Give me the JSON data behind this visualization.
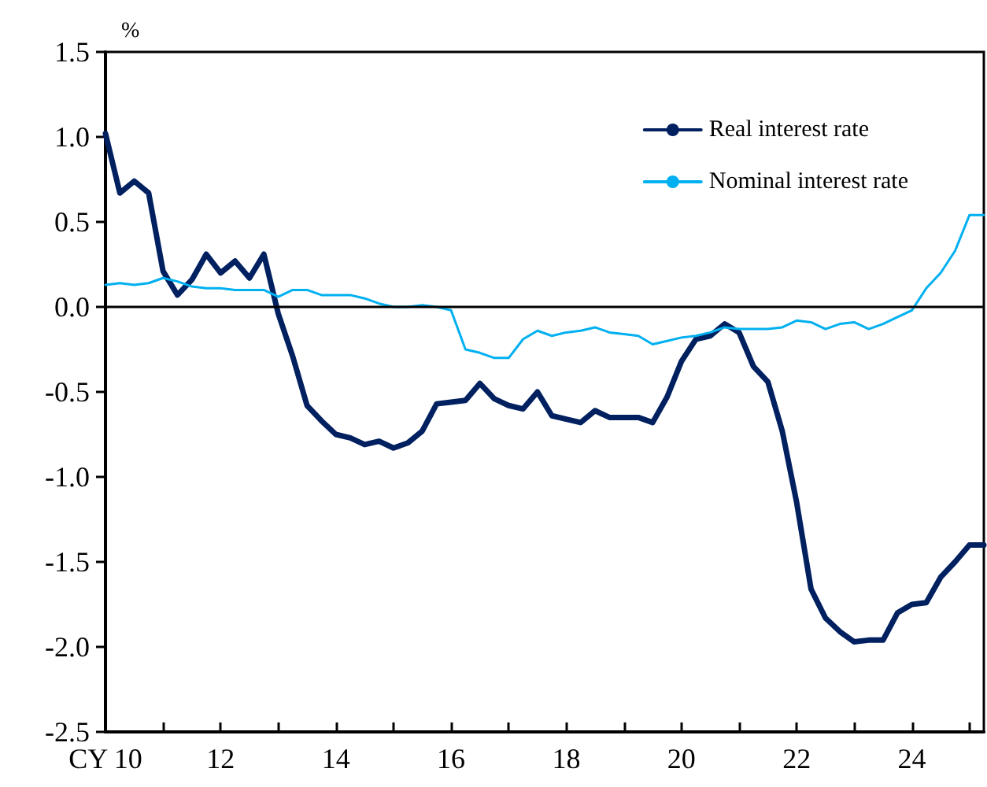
{
  "chart_data": {
    "type": "line",
    "ylabel": "%",
    "x": [
      10,
      10.25,
      10.5,
      10.75,
      11,
      11.25,
      11.5,
      11.75,
      12,
      12.25,
      12.5,
      12.75,
      13,
      13.25,
      13.5,
      13.75,
      14,
      14.25,
      14.5,
      14.75,
      15,
      15.25,
      15.5,
      15.75,
      16,
      16.25,
      16.5,
      16.75,
      17,
      17.25,
      17.5,
      17.75,
      18,
      18.25,
      18.5,
      18.75,
      19,
      19.25,
      19.5,
      19.75,
      20,
      20.25,
      20.5,
      20.75,
      21,
      21.25,
      21.5,
      21.75,
      22,
      22.25,
      22.5,
      22.75,
      23,
      23.25,
      23.5,
      23.75,
      24,
      24.25,
      24.5,
      24.75,
      25,
      25.25
    ],
    "series": [
      {
        "name": "Real interest rate",
        "color": "#002060",
        "values": [
          1.02,
          0.67,
          0.74,
          0.67,
          0.21,
          0.07,
          0.16,
          0.31,
          0.2,
          0.27,
          0.17,
          0.31,
          -0.04,
          -0.29,
          -0.58,
          -0.67,
          -0.75,
          -0.77,
          -0.81,
          -0.79,
          -0.83,
          -0.8,
          -0.73,
          -0.57,
          -0.56,
          -0.55,
          -0.45,
          -0.54,
          -0.58,
          -0.6,
          -0.5,
          -0.64,
          -0.66,
          -0.68,
          -0.61,
          -0.65,
          -0.65,
          -0.65,
          -0.68,
          -0.53,
          -0.32,
          -0.19,
          -0.17,
          -0.1,
          -0.15,
          -0.35,
          -0.44,
          -0.73,
          -1.15,
          -1.66,
          -1.83,
          -1.91,
          -1.97,
          -1.96,
          -1.96,
          -1.8,
          -1.75,
          -1.74,
          -1.59,
          -1.5,
          -1.4,
          -1.4
        ]
      },
      {
        "name": "Nominal interest rate",
        "color": "#00b0f0",
        "values": [
          0.13,
          0.14,
          0.13,
          0.14,
          0.17,
          0.15,
          0.12,
          0.11,
          0.11,
          0.1,
          0.1,
          0.1,
          0.06,
          0.1,
          0.1,
          0.07,
          0.07,
          0.07,
          0.05,
          0.02,
          0,
          0,
          0.01,
          0,
          -0.02,
          -0.25,
          -0.27,
          -0.3,
          -0.3,
          -0.19,
          -0.14,
          -0.17,
          -0.15,
          -0.14,
          -0.12,
          -0.15,
          -0.16,
          -0.17,
          -0.22,
          -0.2,
          -0.18,
          -0.17,
          -0.15,
          -0.12,
          -0.13,
          -0.13,
          -0.13,
          -0.12,
          -0.08,
          -0.09,
          -0.13,
          -0.1,
          -0.09,
          -0.13,
          -0.1,
          -0.06,
          -0.02,
          0.11,
          0.2,
          0.33,
          0.54,
          0.54
        ]
      }
    ],
    "xlim": [
      10,
      25.25
    ],
    "xticks": [
      {
        "value": 10,
        "label": "CY 10"
      },
      {
        "value": 11,
        "label": null
      },
      12,
      {
        "value": 13,
        "label": null
      },
      14,
      {
        "value": 15,
        "label": null
      },
      16,
      {
        "value": 17,
        "label": null
      },
      18,
      {
        "value": 19,
        "label": null
      },
      20,
      {
        "value": 21,
        "label": null
      },
      22,
      {
        "value": 23,
        "label": null
      },
      24,
      {
        "value": 25,
        "label": null
      }
    ],
    "ylim": [
      -2.5,
      1.5
    ],
    "yticks": [
      {
        "value": -2.5,
        "label": "-2.5"
      },
      {
        "value": -2,
        "label": "-2.0"
      },
      {
        "value": -1.5,
        "label": "-1.5"
      },
      {
        "value": -1,
        "label": "-1.0"
      },
      {
        "value": -0.5,
        "label": "-0.5"
      },
      {
        "value": 0,
        "label": "0.0"
      },
      {
        "value": 0.5,
        "label": "0.5"
      },
      {
        "value": 1,
        "label": "1.0"
      },
      {
        "value": 1.5,
        "label": "1.5"
      }
    ],
    "ref_lines": [
      {
        "axis": "y",
        "value": 0,
        "color": "#000000"
      }
    ],
    "legend": "top right",
    "grid": false,
    "line_style": "solid",
    "marker": "none"
  }
}
